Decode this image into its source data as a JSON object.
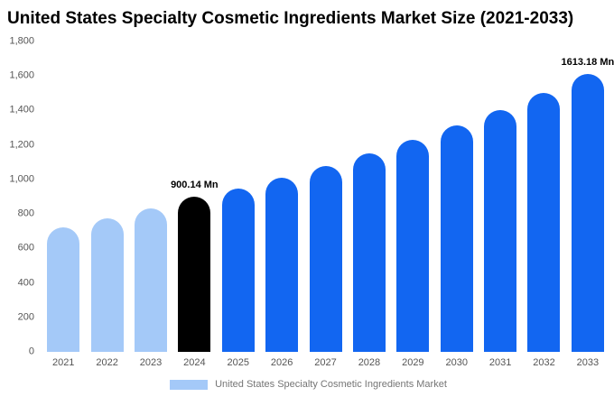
{
  "chart_data": {
    "type": "bar",
    "title": "United States Specialty Cosmetic Ingredients Market Size (2021-2033)",
    "categories": [
      "2021",
      "2022",
      "2023",
      "2024",
      "2025",
      "2026",
      "2027",
      "2028",
      "2029",
      "2030",
      "2031",
      "2032",
      "2033"
    ],
    "values": [
      720,
      775,
      830,
      900.14,
      945,
      1010,
      1080,
      1150,
      1230,
      1315,
      1400,
      1500,
      1613.18
    ],
    "unit": "Mn",
    "bar_colors": [
      "#A4C9F8",
      "#A4C9F8",
      "#A4C9F8",
      "#000000",
      "#1266F1",
      "#1266F1",
      "#1266F1",
      "#1266F1",
      "#1266F1",
      "#1266F1",
      "#1266F1",
      "#1266F1",
      "#1266F1"
    ],
    "ylim": [
      0,
      1800
    ],
    "yticks": [
      {
        "value": 0,
        "label": "0"
      },
      {
        "value": 200,
        "label": "200"
      },
      {
        "value": 400,
        "label": "400"
      },
      {
        "value": 600,
        "label": "600"
      },
      {
        "value": 800,
        "label": "800"
      },
      {
        "value": 1000,
        "label": "1,000"
      },
      {
        "value": 1200,
        "label": "1,200"
      },
      {
        "value": 1400,
        "label": "1,400"
      },
      {
        "value": 1600,
        "label": "1,600"
      },
      {
        "value": 1800,
        "label": "1,800"
      }
    ],
    "annotations": [
      {
        "index": 3,
        "label": "900.14 Mn"
      },
      {
        "index": 12,
        "label": "1613.18 Mn"
      }
    ],
    "legend": {
      "label": "United States Specialty Cosmetic Ingredients Market",
      "swatch_color": "#A4C9F8"
    },
    "grid": false,
    "legend_position": "bottom"
  }
}
